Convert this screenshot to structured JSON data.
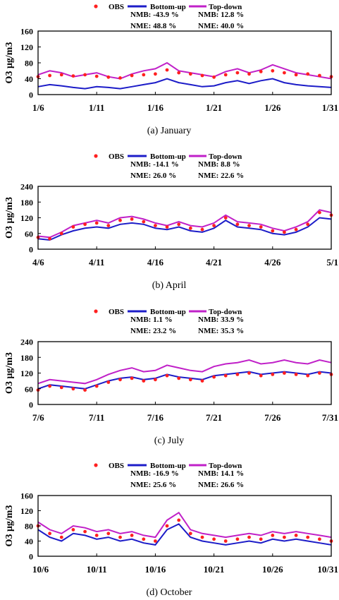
{
  "legend": {
    "obs": "OBS",
    "bottom_up": "Bottom-up",
    "top_down": "Top-down"
  },
  "colors": {
    "obs": "#ff2020",
    "bottom_up": "#1c1cc8",
    "top_down": "#c020c8"
  },
  "chart_data": [
    {
      "type": "line",
      "caption": "(a)  January",
      "ylabel": "O3 μg/m3",
      "ylim": [
        0,
        160
      ],
      "yticks": [
        0,
        40,
        80,
        120,
        160
      ],
      "xlim": [
        6,
        31
      ],
      "xticks": [
        6,
        11,
        16,
        21,
        26,
        31
      ],
      "xticklabels": [
        "1/6",
        "1/11",
        "1/16",
        "1/21",
        "1/26",
        "1/31"
      ],
      "stats": {
        "bottom_up": {
          "nmb": "NMB: -43.9 %",
          "nme": "NME: 48.8 %"
        },
        "top_down": {
          "nmb": "NMB: 12.8 %",
          "nme": "NME: 40.0 %"
        }
      },
      "series": [
        {
          "name": "OBS",
          "x": [
            6,
            7,
            8,
            9,
            10,
            11,
            12,
            13,
            14,
            15,
            16,
            17,
            18,
            19,
            20,
            21,
            22,
            23,
            24,
            25,
            26,
            27,
            28,
            29,
            30,
            31
          ],
          "values": [
            45,
            48,
            50,
            47,
            50,
            46,
            44,
            42,
            48,
            50,
            52,
            62,
            55,
            52,
            48,
            44,
            50,
            55,
            52,
            58,
            60,
            55,
            50,
            52,
            48,
            45
          ]
        },
        {
          "name": "Bottom-up",
          "x": [
            6,
            7,
            8,
            9,
            10,
            11,
            12,
            13,
            14,
            15,
            16,
            17,
            18,
            19,
            20,
            21,
            22,
            23,
            24,
            25,
            26,
            27,
            28,
            29,
            30,
            31
          ],
          "values": [
            20,
            25,
            22,
            18,
            15,
            20,
            18,
            15,
            20,
            25,
            30,
            40,
            30,
            25,
            20,
            22,
            30,
            35,
            28,
            35,
            40,
            30,
            25,
            22,
            20,
            18
          ]
        },
        {
          "name": "Top-down",
          "x": [
            6,
            7,
            8,
            9,
            10,
            11,
            12,
            13,
            14,
            15,
            16,
            17,
            18,
            19,
            20,
            21,
            22,
            23,
            24,
            25,
            26,
            27,
            28,
            29,
            30,
            31
          ],
          "values": [
            50,
            60,
            55,
            45,
            50,
            55,
            45,
            40,
            52,
            60,
            65,
            80,
            60,
            55,
            50,
            45,
            58,
            65,
            55,
            62,
            75,
            65,
            55,
            50,
            45,
            40
          ]
        }
      ]
    },
    {
      "type": "line",
      "caption": "(b)  April",
      "ylabel": "O3 μg/m3",
      "ylim": [
        0,
        240
      ],
      "yticks": [
        0,
        60,
        120,
        180,
        240
      ],
      "xlim": [
        6,
        31
      ],
      "xticks": [
        6,
        11,
        16,
        21,
        26,
        31
      ],
      "xticklabels": [
        "4/6",
        "4/11",
        "4/16",
        "4/21",
        "4/26",
        "5/1"
      ],
      "stats": {
        "bottom_up": {
          "nmb": "NMB: -14.1 %",
          "nme": "NME: 26.0 %"
        },
        "top_down": {
          "nmb": "NMB: 8.8 %",
          "nme": "NME: 22.6 %"
        }
      },
      "series": [
        {
          "name": "OBS",
          "x": [
            6,
            7,
            8,
            9,
            10,
            11,
            12,
            13,
            14,
            15,
            16,
            17,
            18,
            19,
            20,
            21,
            22,
            23,
            24,
            25,
            26,
            27,
            28,
            29,
            30,
            31
          ],
          "values": [
            45,
            40,
            60,
            85,
            95,
            100,
            90,
            110,
            115,
            105,
            90,
            85,
            95,
            80,
            75,
            90,
            120,
            95,
            90,
            85,
            70,
            65,
            75,
            95,
            140,
            130
          ]
        },
        {
          "name": "Bottom-up",
          "x": [
            6,
            7,
            8,
            9,
            10,
            11,
            12,
            13,
            14,
            15,
            16,
            17,
            18,
            19,
            20,
            21,
            22,
            23,
            24,
            25,
            26,
            27,
            28,
            29,
            30,
            31
          ],
          "values": [
            40,
            35,
            55,
            70,
            80,
            85,
            80,
            95,
            100,
            95,
            80,
            75,
            85,
            70,
            65,
            80,
            110,
            85,
            80,
            75,
            60,
            55,
            65,
            85,
            120,
            115
          ]
        },
        {
          "name": "Top-down",
          "x": [
            6,
            7,
            8,
            9,
            10,
            11,
            12,
            13,
            14,
            15,
            16,
            17,
            18,
            19,
            20,
            21,
            22,
            23,
            24,
            25,
            26,
            27,
            28,
            29,
            30,
            31
          ],
          "values": [
            50,
            45,
            65,
            90,
            100,
            110,
            100,
            120,
            125,
            115,
            100,
            90,
            105,
            90,
            85,
            100,
            130,
            105,
            100,
            95,
            80,
            70,
            85,
            105,
            150,
            140
          ]
        }
      ]
    },
    {
      "type": "line",
      "caption": "(c)   July",
      "ylabel": "O3 μg/m3",
      "ylim": [
        0,
        240
      ],
      "yticks": [
        0,
        60,
        120,
        180,
        240
      ],
      "xlim": [
        6,
        31
      ],
      "xticks": [
        6,
        11,
        16,
        21,
        26,
        31
      ],
      "xticklabels": [
        "7/6",
        "7/11",
        "7/16",
        "7/21",
        "7/26",
        "7/31"
      ],
      "stats": {
        "bottom_up": {
          "nmb": "NMB: 1.1 %",
          "nme": "NME: 23.2 %"
        },
        "top_down": {
          "nmb": "NMB: 33.9 %",
          "nme": "NME: 35.3 %"
        }
      },
      "series": [
        {
          "name": "OBS",
          "x": [
            6,
            7,
            8,
            9,
            10,
            11,
            12,
            13,
            14,
            15,
            16,
            17,
            18,
            19,
            20,
            21,
            22,
            23,
            24,
            25,
            26,
            27,
            28,
            29,
            30,
            31
          ],
          "values": [
            55,
            70,
            65,
            60,
            55,
            70,
            85,
            95,
            100,
            90,
            95,
            110,
            100,
            95,
            90,
            105,
            110,
            115,
            120,
            110,
            115,
            120,
            115,
            110,
            120,
            115
          ]
        },
        {
          "name": "Bottom-up",
          "x": [
            6,
            7,
            8,
            9,
            10,
            11,
            12,
            13,
            14,
            15,
            16,
            17,
            18,
            19,
            20,
            21,
            22,
            23,
            24,
            25,
            26,
            27,
            28,
            29,
            30,
            31
          ],
          "values": [
            60,
            75,
            70,
            65,
            60,
            75,
            90,
            100,
            105,
            95,
            100,
            115,
            105,
            100,
            95,
            110,
            115,
            120,
            125,
            115,
            120,
            125,
            120,
            115,
            125,
            120
          ]
        },
        {
          "name": "Top-down",
          "x": [
            6,
            7,
            8,
            9,
            10,
            11,
            12,
            13,
            14,
            15,
            16,
            17,
            18,
            19,
            20,
            21,
            22,
            23,
            24,
            25,
            26,
            27,
            28,
            29,
            30,
            31
          ],
          "values": [
            80,
            95,
            90,
            85,
            80,
            95,
            115,
            130,
            140,
            125,
            130,
            150,
            140,
            130,
            125,
            145,
            155,
            160,
            170,
            155,
            160,
            170,
            160,
            155,
            170,
            160
          ]
        }
      ]
    },
    {
      "type": "line",
      "caption": "(d) October",
      "ylabel": "O3 μg/m3",
      "ylim": [
        0,
        160
      ],
      "yticks": [
        0,
        40,
        80,
        120,
        160
      ],
      "xlim": [
        6,
        31
      ],
      "xticks": [
        6,
        11,
        16,
        21,
        26,
        31
      ],
      "xticklabels": [
        "10/6",
        "10/11",
        "10/16",
        "10/21",
        "10/26",
        "10/31"
      ],
      "stats": {
        "bottom_up": {
          "nmb": "NMB: -16.9 %",
          "nme": "NME: 25.6 %"
        },
        "top_down": {
          "nmb": "NMB: 14.1 %",
          "nme": "NME: 26.6 %"
        }
      },
      "series": [
        {
          "name": "OBS",
          "x": [
            6,
            7,
            8,
            9,
            10,
            11,
            12,
            13,
            14,
            15,
            16,
            17,
            18,
            19,
            20,
            21,
            22,
            23,
            24,
            25,
            26,
            27,
            28,
            29,
            30,
            31
          ],
          "values": [
            80,
            60,
            50,
            70,
            65,
            55,
            60,
            50,
            55,
            45,
            40,
            80,
            95,
            60,
            50,
            45,
            40,
            45,
            50,
            45,
            55,
            50,
            55,
            50,
            45,
            40
          ]
        },
        {
          "name": "Bottom-up",
          "x": [
            6,
            7,
            8,
            9,
            10,
            11,
            12,
            13,
            14,
            15,
            16,
            17,
            18,
            19,
            20,
            21,
            22,
            23,
            24,
            25,
            26,
            27,
            28,
            29,
            30,
            31
          ],
          "values": [
            70,
            50,
            40,
            60,
            55,
            45,
            50,
            40,
            45,
            35,
            30,
            70,
            85,
            50,
            40,
            35,
            30,
            35,
            40,
            35,
            45,
            40,
            45,
            40,
            35,
            30
          ]
        },
        {
          "name": "Top-down",
          "x": [
            6,
            7,
            8,
            9,
            10,
            11,
            12,
            13,
            14,
            15,
            16,
            17,
            18,
            19,
            20,
            21,
            22,
            23,
            24,
            25,
            26,
            27,
            28,
            29,
            30,
            31
          ],
          "values": [
            90,
            70,
            60,
            80,
            75,
            65,
            70,
            60,
            65,
            55,
            50,
            95,
            115,
            70,
            60,
            55,
            50,
            55,
            60,
            55,
            65,
            60,
            65,
            60,
            55,
            50
          ]
        }
      ]
    }
  ]
}
